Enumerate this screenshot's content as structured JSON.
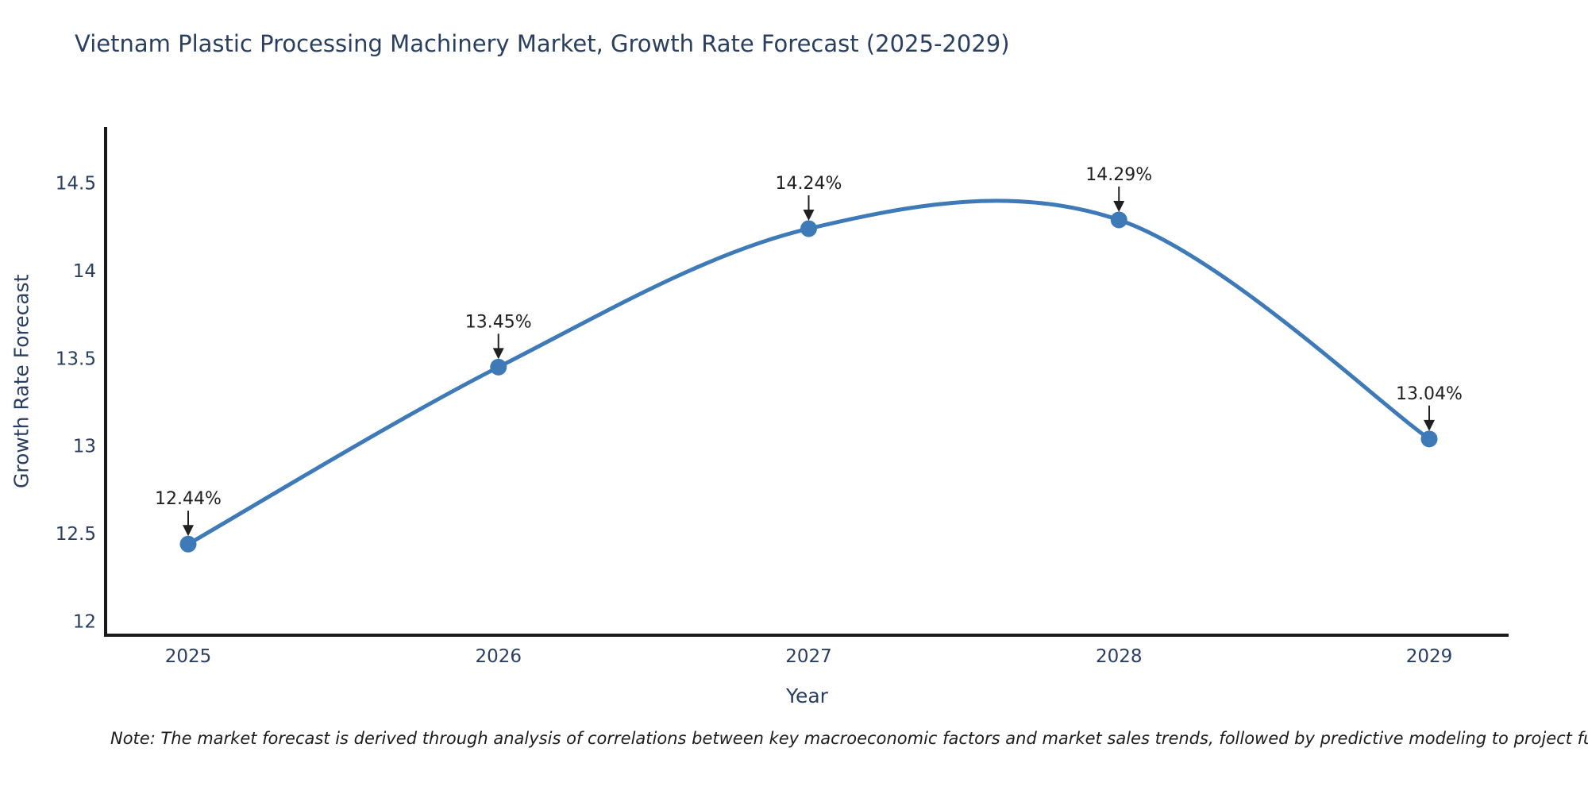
{
  "note": {
    "text": "Note: The market forecast is derived through analysis of correlations between key macroeconomic factors and market sales trends, followed by predictive modeling to project future sal"
  },
  "chart_data": {
    "type": "line",
    "title": "Vietnam Plastic Processing Machinery Market, Growth Rate Forecast (2025-2029)",
    "xlabel": "Year",
    "ylabel": "Growth Rate Forecast",
    "line_shape": "spline",
    "grid": false,
    "legend": "none",
    "x": [
      2025,
      2026,
      2027,
      2028,
      2029
    ],
    "x_tick_labels": [
      "2025",
      "2026",
      "2027",
      "2028",
      "2029"
    ],
    "values": [
      12.44,
      13.45,
      14.24,
      14.29,
      13.04
    ],
    "point_labels": [
      "12.44%",
      "13.45%",
      "14.24%",
      "14.29%",
      "13.04%"
    ],
    "yticks": [
      12,
      12.5,
      13,
      13.5,
      14,
      14.5
    ],
    "ytick_labels": [
      "12",
      "12.5",
      "13",
      "13.5",
      "14",
      "14.5"
    ],
    "ylim": [
      11.92,
      14.82
    ],
    "colors": {
      "line": "#3e7ab7",
      "marker": "#3e7ab7",
      "axis_line": "#1a1a1a",
      "tick_label": "#2a3f5f",
      "title": "#2a3f5f",
      "annotation": "#202020",
      "background": "#ffffff"
    }
  }
}
